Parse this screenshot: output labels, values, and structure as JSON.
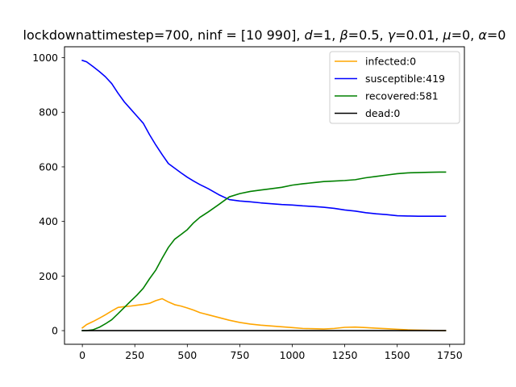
{
  "chart_data": {
    "type": "line",
    "title": "lockdownattimestep=700, ninf = [10 990], d=1, β=0.5, γ=0.01, μ=0, α=0",
    "title_parts": {
      "prefix": "lockdownattimestep=700, ninf = [10 990], ",
      "d_sym": "d",
      "d_val": "=1, ",
      "beta_sym": "β",
      "beta_val": "=0.5, ",
      "gamma_sym": "γ",
      "gamma_val": "=0.01, ",
      "mu_sym": "μ",
      "mu_val": "=0, ",
      "alpha_sym": "α",
      "alpha_val": "=0"
    },
    "xlabel": "",
    "ylabel": "",
    "xlim": [
      -85,
      1820
    ],
    "ylim": [
      -50,
      1040
    ],
    "xticks": [
      0,
      250,
      500,
      750,
      1000,
      1250,
      1500,
      1750
    ],
    "xtick_labels": [
      "0",
      "250",
      "500",
      "750",
      "1000",
      "1250",
      "1500",
      "1750"
    ],
    "yticks": [
      0,
      200,
      400,
      600,
      800,
      1000
    ],
    "ytick_labels": [
      "0",
      "200",
      "400",
      "600",
      "800",
      "1000"
    ],
    "grid": false,
    "legend_position": "top-right",
    "series": [
      {
        "name": "infected",
        "label": "infected:0",
        "color": "#ffa500",
        "x": [
          0,
          20,
          50,
          80,
          110,
          140,
          170,
          200,
          230,
          260,
          290,
          320,
          350,
          380,
          410,
          440,
          470,
          500,
          530,
          560,
          600,
          650,
          700,
          750,
          800,
          850,
          900,
          950,
          1000,
          1050,
          1100,
          1150,
          1200,
          1250,
          1300,
          1350,
          1400,
          1450,
          1500,
          1550,
          1600,
          1650,
          1700,
          1730
        ],
        "y": [
          10,
          22,
          33,
          45,
          58,
          72,
          85,
          88,
          90,
          93,
          96,
          100,
          110,
          117,
          105,
          95,
          90,
          83,
          75,
          66,
          58,
          48,
          38,
          30,
          24,
          20,
          17,
          14,
          11,
          8,
          7,
          6,
          8,
          12,
          13,
          11,
          9,
          7,
          5,
          3,
          2,
          1,
          0,
          0
        ]
      },
      {
        "name": "susceptible",
        "label": "susceptible:419",
        "color": "#0000ff",
        "x": [
          0,
          20,
          50,
          80,
          110,
          140,
          170,
          200,
          230,
          260,
          290,
          320,
          350,
          380,
          410,
          440,
          470,
          500,
          530,
          560,
          600,
          650,
          700,
          750,
          800,
          850,
          900,
          950,
          1000,
          1050,
          1100,
          1150,
          1200,
          1250,
          1300,
          1350,
          1400,
          1450,
          1500,
          1550,
          1600,
          1650,
          1700,
          1730
        ],
        "y": [
          990,
          985,
          968,
          950,
          930,
          905,
          870,
          838,
          812,
          786,
          760,
          718,
          680,
          645,
          612,
          595,
          578,
          562,
          548,
          535,
          520,
          498,
          480,
          475,
          472,
          468,
          465,
          462,
          460,
          457,
          455,
          452,
          448,
          442,
          438,
          432,
          428,
          425,
          421,
          420,
          419,
          419,
          419,
          419
        ]
      },
      {
        "name": "recovered",
        "label": "recovered:581",
        "color": "#008000",
        "x": [
          0,
          20,
          50,
          80,
          110,
          140,
          170,
          200,
          230,
          260,
          290,
          320,
          350,
          380,
          410,
          440,
          470,
          500,
          530,
          560,
          600,
          650,
          700,
          750,
          800,
          850,
          900,
          950,
          1000,
          1050,
          1100,
          1150,
          1200,
          1250,
          1300,
          1350,
          1400,
          1450,
          1500,
          1550,
          1600,
          1650,
          1700,
          1730
        ],
        "y": [
          0,
          0,
          3,
          12,
          25,
          40,
          62,
          85,
          108,
          130,
          155,
          190,
          222,
          265,
          305,
          335,
          352,
          370,
          395,
          415,
          435,
          462,
          490,
          502,
          510,
          515,
          520,
          525,
          533,
          538,
          542,
          546,
          548,
          550,
          553,
          560,
          565,
          570,
          575,
          578,
          579,
          580,
          581,
          581
        ]
      },
      {
        "name": "dead",
        "label": "dead:0",
        "color": "#000000",
        "x": [
          0,
          1730
        ],
        "y": [
          0,
          0
        ]
      }
    ]
  }
}
